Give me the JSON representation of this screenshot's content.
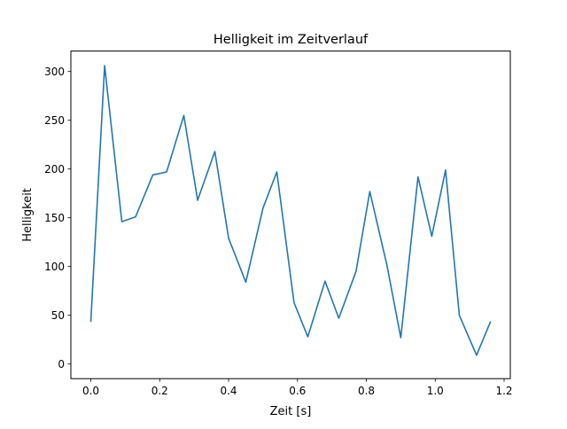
{
  "chart_data": {
    "type": "line",
    "title": "Helligkeit im Zeitverlauf",
    "xlabel": "Zeit [s]",
    "ylabel": "Helligkeit",
    "xlim": [
      -0.058,
      1.218
    ],
    "ylim": [
      -15,
      321
    ],
    "x_ticks": [
      0.0,
      0.2,
      0.4,
      0.6,
      0.8,
      1.0,
      1.2
    ],
    "x_tick_labels": [
      "0.0",
      "0.2",
      "0.4",
      "0.6",
      "0.8",
      "1.0",
      "1.2"
    ],
    "y_ticks": [
      0,
      50,
      100,
      150,
      200,
      250,
      300
    ],
    "y_tick_labels": [
      "0",
      "50",
      "100",
      "150",
      "200",
      "250",
      "300"
    ],
    "grid": false,
    "legend": "none",
    "series": [
      {
        "color": "#1f77b4",
        "x": [
          0.0,
          0.04,
          0.09,
          0.13,
          0.18,
          0.22,
          0.27,
          0.31,
          0.36,
          0.4,
          0.45,
          0.5,
          0.54,
          0.59,
          0.63,
          0.68,
          0.72,
          0.77,
          0.81,
          0.86,
          0.9,
          0.95,
          0.99,
          1.03,
          1.07,
          1.12,
          1.16
        ],
        "y": [
          44,
          306,
          146,
          151,
          194,
          197,
          255,
          168,
          218,
          129,
          84,
          160,
          197,
          63,
          28,
          85,
          47,
          95,
          177,
          101,
          27,
          192,
          131,
          199,
          50,
          9,
          43
        ]
      }
    ]
  }
}
